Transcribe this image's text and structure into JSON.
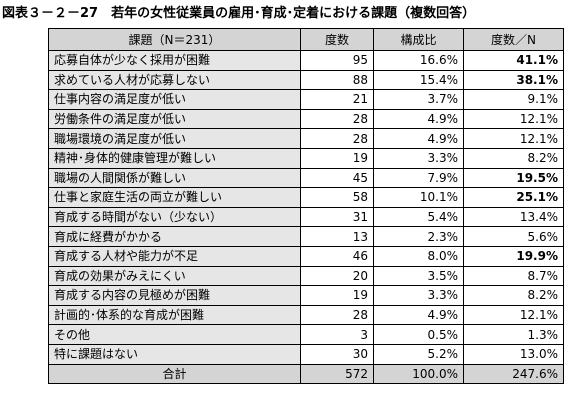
{
  "header": {
    "title": "図表３－２－27　若年の女性従業員の雇用･育成･定着における課題（複数回答）"
  },
  "table": {
    "columns": [
      "課題（N＝231）",
      "度数",
      "構成比",
      "度数／N"
    ],
    "rows": [
      {
        "label": "応募自体が少なく採用が困難",
        "count": "95",
        "ratio": "16.6%",
        "per_n": "41.1%",
        "emphasis": true
      },
      {
        "label": "求めている人材が応募しない",
        "count": "88",
        "ratio": "15.4%",
        "per_n": "38.1%",
        "emphasis": true
      },
      {
        "label": "仕事内容の満足度が低い",
        "count": "21",
        "ratio": "3.7%",
        "per_n": "9.1%",
        "emphasis": false
      },
      {
        "label": "労働条件の満足度が低い",
        "count": "28",
        "ratio": "4.9%",
        "per_n": "12.1%",
        "emphasis": false
      },
      {
        "label": "職場環境の満足度が低い",
        "count": "28",
        "ratio": "4.9%",
        "per_n": "12.1%",
        "emphasis": false
      },
      {
        "label": "精神･身体的健康管理が難しい",
        "count": "19",
        "ratio": "3.3%",
        "per_n": "8.2%",
        "emphasis": false
      },
      {
        "label": "職場の人間関係が難しい",
        "count": "45",
        "ratio": "7.9%",
        "per_n": "19.5%",
        "emphasis": true
      },
      {
        "label": "仕事と家庭生活の両立が難しい",
        "count": "58",
        "ratio": "10.1%",
        "per_n": "25.1%",
        "emphasis": true
      },
      {
        "label": "育成する時間がない（少ない）",
        "count": "31",
        "ratio": "5.4%",
        "per_n": "13.4%",
        "emphasis": false
      },
      {
        "label": "育成に経費がかかる",
        "count": "13",
        "ratio": "2.3%",
        "per_n": "5.6%",
        "emphasis": false
      },
      {
        "label": "育成する人材や能力が不足",
        "count": "46",
        "ratio": "8.0%",
        "per_n": "19.9%",
        "emphasis": true
      },
      {
        "label": "育成の効果がみえにくい",
        "count": "20",
        "ratio": "3.5%",
        "per_n": "8.7%",
        "emphasis": false
      },
      {
        "label": "育成する内容の見極めが困難",
        "count": "19",
        "ratio": "3.3%",
        "per_n": "8.2%",
        "emphasis": false
      },
      {
        "label": "計画的･体系的な育成が困難",
        "count": "28",
        "ratio": "4.9%",
        "per_n": "12.1%",
        "emphasis": false
      },
      {
        "label": "その他",
        "count": "3",
        "ratio": "0.5%",
        "per_n": "1.3%",
        "emphasis": false
      },
      {
        "label": "特に課題はない",
        "count": "30",
        "ratio": "5.2%",
        "per_n": "13.0%",
        "emphasis": false
      }
    ],
    "total": {
      "label": "合計",
      "count": "572",
      "ratio": "100.0%",
      "per_n": "247.6%"
    }
  }
}
